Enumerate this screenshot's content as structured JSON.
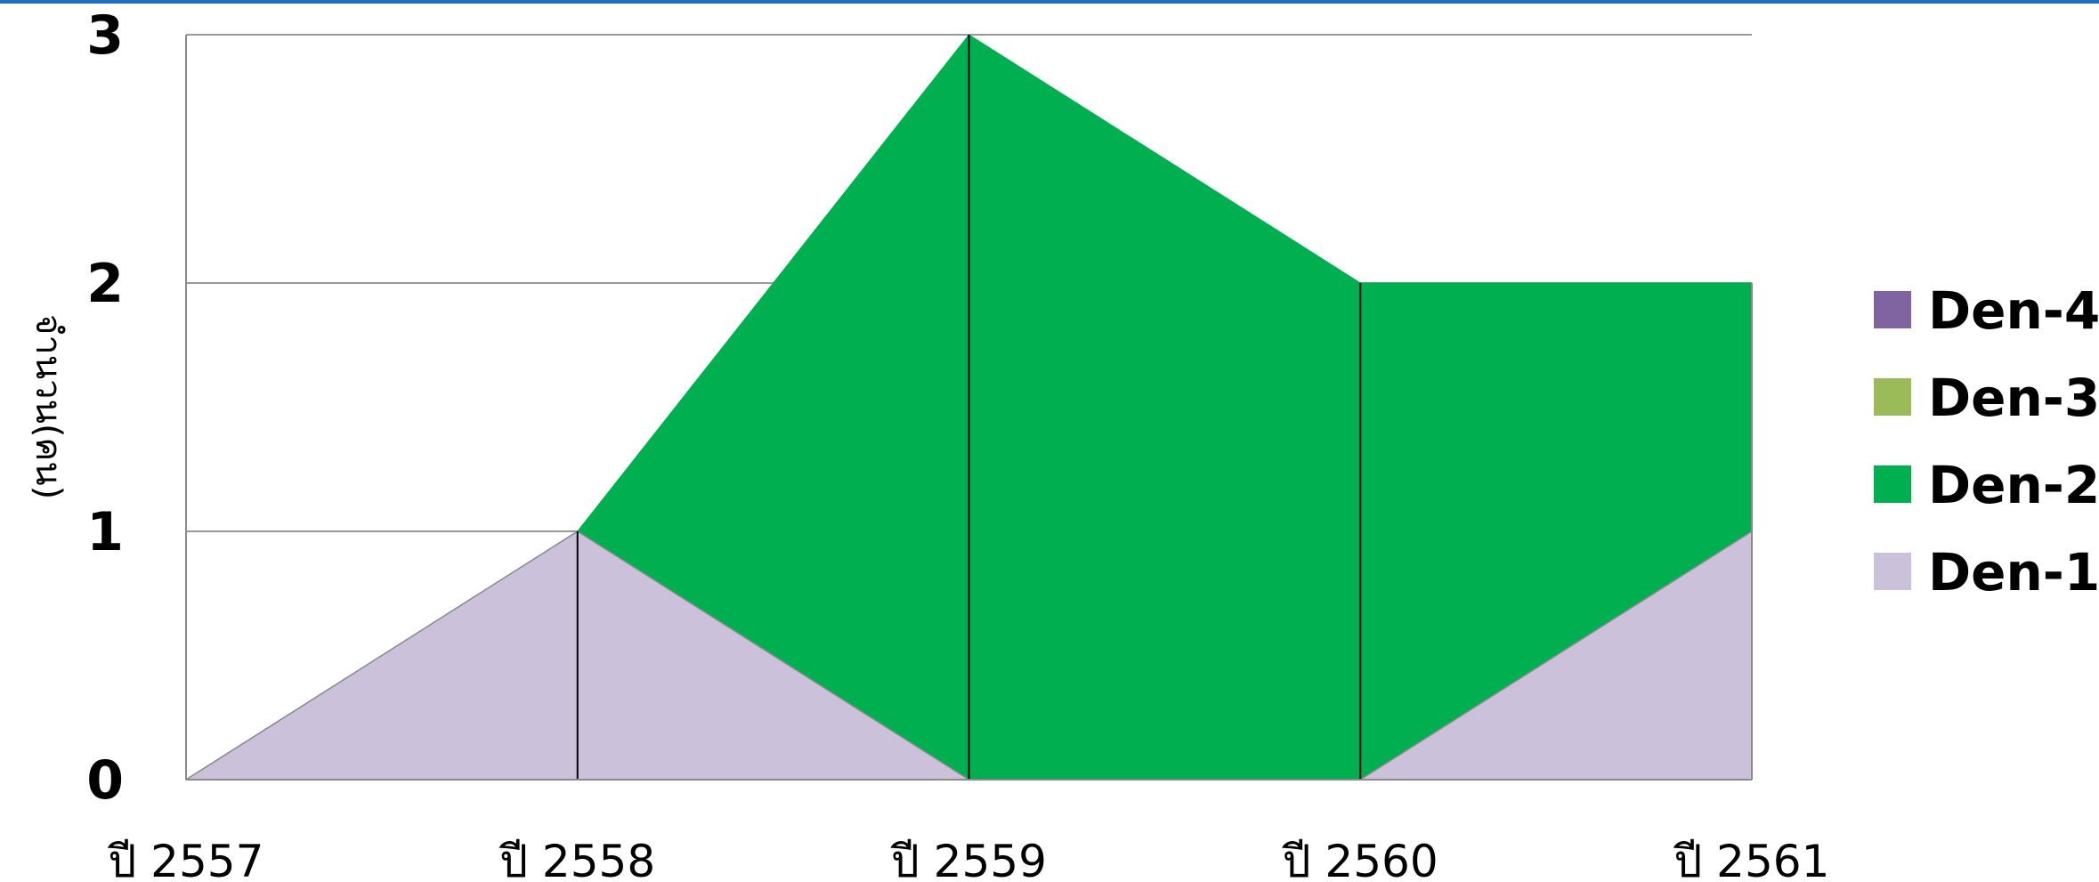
{
  "chart_data": {
    "type": "area",
    "stacked": true,
    "title": "",
    "xlabel": "",
    "ylabel": "จำนวน(คน)",
    "categories": [
      "ปี 2557",
      "ปี 2558",
      "ปี 2559",
      "ปี 2560",
      "ปี 2561"
    ],
    "ylim": [
      0,
      3
    ],
    "yticks": [
      "0",
      "1",
      "2",
      "3"
    ],
    "grid": true,
    "legend_position": "right",
    "series": [
      {
        "name": "Den-1",
        "values": [
          0,
          1,
          0,
          0,
          1
        ],
        "color": "#CBC1DA"
      },
      {
        "name": "Den-2",
        "values": [
          0,
          0,
          3,
          2,
          1
        ],
        "color": "#00B050"
      },
      {
        "name": "Den-3",
        "values": [
          0,
          0,
          0,
          0,
          0
        ],
        "color": "#9BBB59"
      },
      {
        "name": "Den-4",
        "values": [
          0,
          0,
          0,
          0,
          0
        ],
        "color": "#8064A2"
      }
    ]
  }
}
